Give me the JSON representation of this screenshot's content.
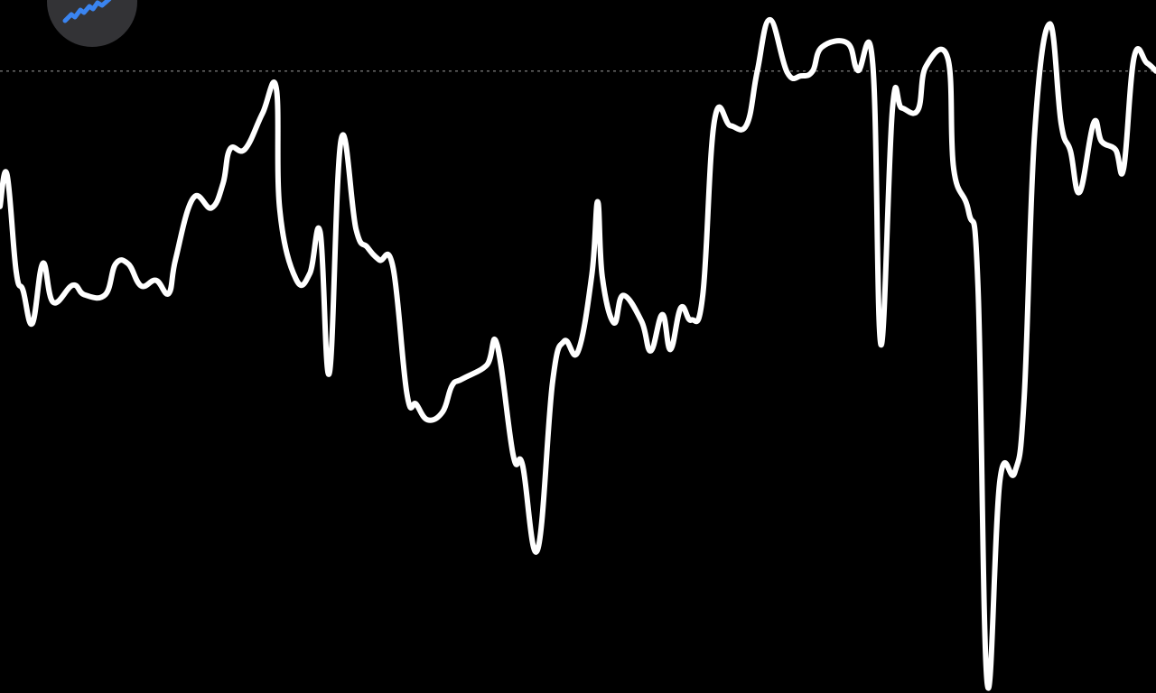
{
  "app": {
    "icon": "trend-line-icon",
    "icon_color": "#3A84F0",
    "button_color": "#333336"
  },
  "chart_data": {
    "type": "line",
    "title": "",
    "xlabel": "",
    "ylabel": "",
    "ylim": [
      0,
      100
    ],
    "grid": false,
    "reference_line": {
      "value": 90.4,
      "style": "dotted",
      "color": "#6A6A6A"
    },
    "series": [
      {
        "color": "#FFFFFF",
        "points": [
          [
            0,
            70.6
          ],
          [
            0.6,
            75.3
          ],
          [
            1.4,
            61.1
          ],
          [
            2.0,
            58.3
          ],
          [
            2.8,
            53.5
          ],
          [
            3.7,
            62.3
          ],
          [
            4.6,
            56.6
          ],
          [
            6.3,
            59.1
          ],
          [
            7.3,
            57.7
          ],
          [
            9.1,
            57.7
          ],
          [
            10.0,
            62.2
          ],
          [
            11.1,
            62.2
          ],
          [
            12.2,
            59.0
          ],
          [
            13.5,
            59.8
          ],
          [
            14.6,
            57.9
          ],
          [
            15.2,
            63.0
          ],
          [
            16.7,
            71.8
          ],
          [
            18.3,
            70.4
          ],
          [
            19.3,
            74.0
          ],
          [
            19.9,
            79.0
          ],
          [
            21.2,
            79.0
          ],
          [
            22.7,
            84.2
          ],
          [
            23.9,
            87.9
          ],
          [
            24.2,
            70.1
          ],
          [
            25.6,
            60.0
          ],
          [
            26.8,
            60.8
          ],
          [
            27.7,
            66.8
          ],
          [
            28.5,
            46.3
          ],
          [
            29.5,
            80.3
          ],
          [
            30.8,
            67.3
          ],
          [
            31.8,
            64.6
          ],
          [
            32.8,
            62.8
          ],
          [
            34.0,
            61.7
          ],
          [
            35.2,
            43.2
          ],
          [
            36.0,
            41.7
          ],
          [
            37.0,
            39.4
          ],
          [
            38.3,
            40.6
          ],
          [
            39.1,
            44.4
          ],
          [
            40.0,
            45.4
          ],
          [
            42.1,
            47.4
          ],
          [
            43.0,
            50.4
          ],
          [
            44.4,
            34.2
          ],
          [
            45.2,
            32.8
          ],
          [
            46.5,
            20.4
          ],
          [
            47.8,
            44.9
          ],
          [
            48.8,
            50.9
          ],
          [
            50.0,
            49.4
          ],
          [
            51.2,
            60.7
          ],
          [
            51.7,
            71.3
          ],
          [
            52.1,
            60.3
          ],
          [
            53.1,
            53.6
          ],
          [
            53.9,
            57.6
          ],
          [
            55.5,
            53.8
          ],
          [
            56.3,
            49.5
          ],
          [
            57.3,
            54.8
          ],
          [
            58.0,
            49.7
          ],
          [
            58.9,
            55.8
          ],
          [
            59.8,
            54.0
          ],
          [
            60.8,
            57.7
          ],
          [
            61.8,
            83.1
          ],
          [
            63.2,
            82.4
          ],
          [
            64.6,
            82.6
          ],
          [
            65.5,
            90.3
          ],
          [
            66.6,
            97.9
          ],
          [
            68.1,
            90.2
          ],
          [
            69.3,
            89.7
          ],
          [
            70.3,
            90.4
          ],
          [
            71.1,
            93.9
          ],
          [
            73.3,
            94.5
          ],
          [
            74.2,
            90.5
          ],
          [
            75.5,
            91.4
          ],
          [
            76.2,
            50.4
          ],
          [
            77.2,
            84.9
          ],
          [
            78.0,
            85.0
          ],
          [
            79.4,
            84.7
          ],
          [
            80.1,
            91.1
          ],
          [
            82.0,
            92.2
          ],
          [
            82.5,
            76.1
          ],
          [
            83.8,
            69.8
          ],
          [
            84.6,
            58.8
          ],
          [
            85.4,
            0.9
          ],
          [
            86.5,
            30.6
          ],
          [
            87.8,
            31.8
          ],
          [
            88.6,
            42.8
          ],
          [
            89.5,
            81.2
          ],
          [
            90.8,
            97.3
          ],
          [
            91.8,
            82.7
          ],
          [
            92.6,
            78.7
          ],
          [
            93.4,
            72.7
          ],
          [
            94.6,
            82.8
          ],
          [
            95.3,
            80.1
          ],
          [
            96.5,
            78.9
          ],
          [
            97.2,
            76.2
          ],
          [
            98.1,
            92.4
          ],
          [
            99.2,
            91.6
          ],
          [
            100,
            90.4
          ]
        ]
      }
    ]
  }
}
